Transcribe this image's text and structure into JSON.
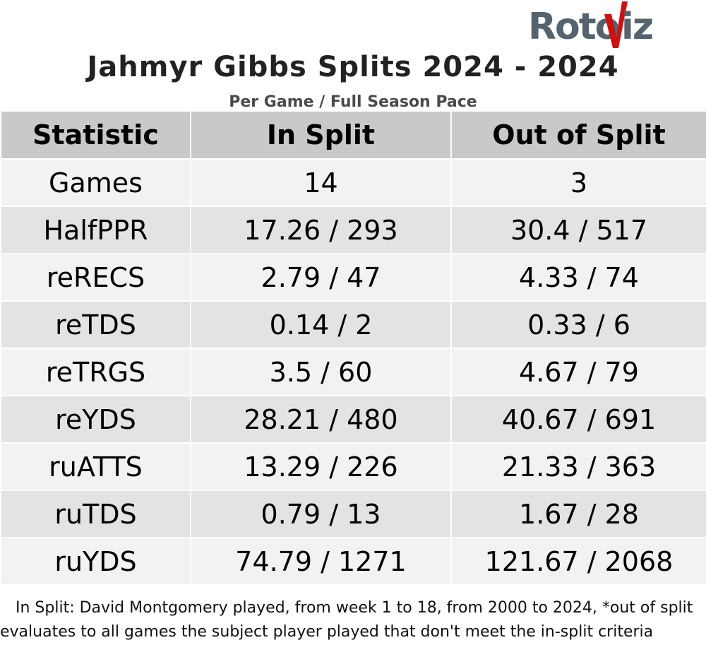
{
  "logo": {
    "text_left": "Roto",
    "text_right": "iz"
  },
  "title": "Jahmyr Gibbs Splits 2024 - 2024",
  "subtitle": "Per Game / Full Season Pace",
  "table": {
    "headers": [
      "Statistic",
      "In Split",
      "Out of Split"
    ],
    "rows": [
      [
        "Games",
        "14",
        "3"
      ],
      [
        "HalfPPR",
        "17.26 / 293",
        "30.4 / 517"
      ],
      [
        "reRECS",
        "2.79 / 47",
        "4.33 / 74"
      ],
      [
        "reTDS",
        "0.14 / 2",
        "0.33 / 6"
      ],
      [
        "reTRGS",
        "3.5 / 60",
        "4.67 / 79"
      ],
      [
        "reYDS",
        "28.21 / 480",
        "40.67 / 691"
      ],
      [
        "ruATTS",
        "13.29 / 226",
        "21.33 / 363"
      ],
      [
        "ruTDS",
        "0.79 / 13",
        "1.67 / 28"
      ],
      [
        "ruYDS",
        "74.79 / 1271",
        "121.67 / 2068"
      ]
    ]
  },
  "footnote": "In Split: David Montgomery played, from week 1 to 18, from 2000 to 2024,  *out of split evaluates to all games the subject player played that don't meet the in-split criteria",
  "colors": {
    "header_bg": "#c9c9c9",
    "row_light": "#f2f2f2",
    "row_dark": "#e3e3e3",
    "logo_gray": "#55636e",
    "logo_red": "#cc1111"
  }
}
